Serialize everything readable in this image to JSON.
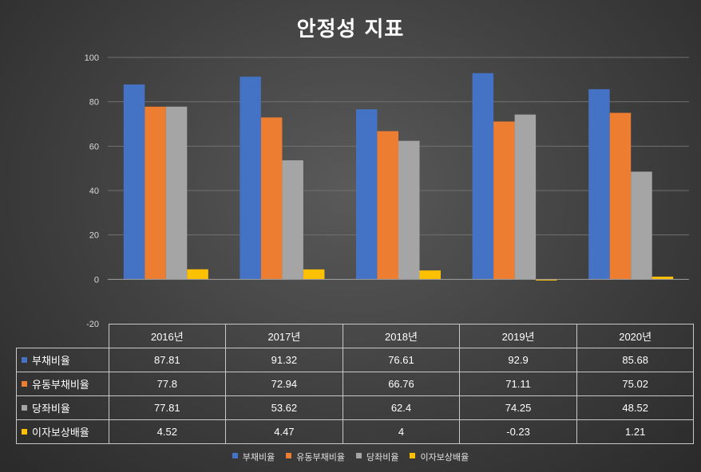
{
  "chart_data": {
    "type": "bar",
    "title": "안정성 지표",
    "categories": [
      "2016년",
      "2017년",
      "2018년",
      "2019년",
      "2020년"
    ],
    "series": [
      {
        "name": "부채비율",
        "color": "#4472c4",
        "values": [
          87.81,
          91.32,
          76.61,
          92.9,
          85.68
        ],
        "labels": [
          "87.81",
          "91.32",
          "76.61",
          "92.9",
          "85.68"
        ]
      },
      {
        "name": "유동부채비율",
        "color": "#ed7d31",
        "values": [
          77.8,
          72.94,
          66.76,
          71.11,
          75.02
        ],
        "labels": [
          "77.8",
          "72.94",
          "66.76",
          "71.11",
          "75.02"
        ]
      },
      {
        "name": "당좌비율",
        "color": "#a5a5a5",
        "values": [
          77.81,
          53.62,
          62.4,
          74.25,
          48.52
        ],
        "labels": [
          "77.81",
          "53.62",
          "62.4",
          "74.25",
          "48.52"
        ]
      },
      {
        "name": "이자보상배율",
        "color": "#ffc000",
        "values": [
          4.52,
          4.47,
          4,
          -0.23,
          1.21
        ],
        "labels": [
          "4.52",
          "4.47",
          "4",
          "-0.23",
          "1.21"
        ]
      }
    ],
    "yticks": [
      "100",
      "80",
      "60",
      "40",
      "20",
      "0",
      "-20"
    ],
    "ylim": [
      -20,
      100
    ],
    "grid": true,
    "legend": "bottom",
    "data_table": true
  }
}
